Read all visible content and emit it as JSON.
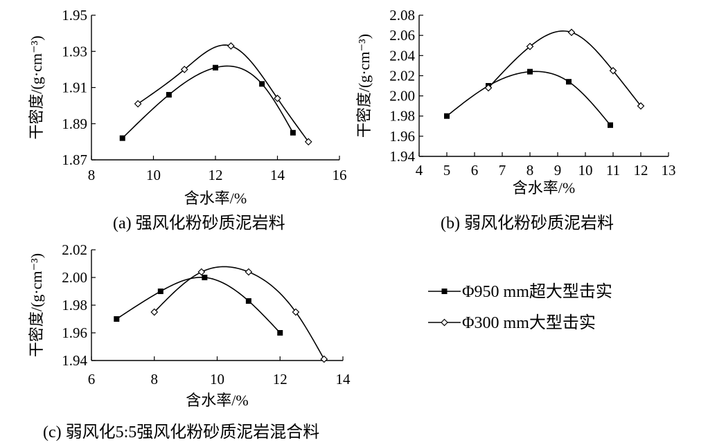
{
  "chart_data": [
    {
      "type": "line",
      "caption": "(a) 强风化粉砂质泥岩料",
      "xlabel": "含水率/%",
      "ylabel": "干密度/(g·cm⁻³)",
      "xlim": [
        8,
        16
      ],
      "ylim": [
        1.87,
        1.95
      ],
      "xticks": [
        8,
        10,
        12,
        14,
        16
      ],
      "yticks": [
        1.87,
        1.89,
        1.91,
        1.93,
        1.95
      ],
      "xtick_labels": [
        "8",
        "10",
        "12",
        "14",
        "16"
      ],
      "ytick_labels": [
        "1.87",
        "1.89",
        "1.91",
        "1.93",
        "1.95"
      ],
      "series": [
        {
          "name": "Φ950 mm超大型击实",
          "marker": "square",
          "x": [
            9.0,
            10.5,
            12.0,
            13.5,
            14.5
          ],
          "y": [
            1.882,
            1.906,
            1.921,
            1.912,
            1.885
          ]
        },
        {
          "name": "Φ300 mm大型击实",
          "marker": "diamond",
          "x": [
            9.5,
            11.0,
            12.5,
            14.0,
            15.0
          ],
          "y": [
            1.901,
            1.92,
            1.933,
            1.904,
            1.88
          ]
        }
      ]
    },
    {
      "type": "line",
      "caption": "(b) 弱风化粉砂质泥岩料",
      "xlabel": "含水率/%",
      "ylabel": "干密度/(g·cm⁻³)",
      "xlim": [
        4,
        13
      ],
      "ylim": [
        1.94,
        2.08
      ],
      "xticks": [
        4,
        5,
        6,
        7,
        8,
        9,
        10,
        11,
        12,
        13
      ],
      "yticks": [
        1.94,
        1.96,
        1.98,
        2.0,
        2.02,
        2.04,
        2.06,
        2.08
      ],
      "xtick_labels": [
        "4",
        "5",
        "6",
        "7",
        "8",
        "9",
        "10",
        "11",
        "12",
        "13"
      ],
      "ytick_labels": [
        "1.94",
        "1.96",
        "1.98",
        "2.00",
        "2.02",
        "2.04",
        "2.06",
        "2.08"
      ],
      "series": [
        {
          "name": "Φ950 mm超大型击实",
          "marker": "square",
          "x": [
            5.0,
            6.5,
            8.0,
            9.4,
            10.9
          ],
          "y": [
            1.98,
            2.01,
            2.024,
            2.014,
            1.971
          ]
        },
        {
          "name": "Φ300 mm大型击实",
          "marker": "diamond",
          "x": [
            6.5,
            8.0,
            9.5,
            11.0,
            12.0
          ],
          "y": [
            2.008,
            2.049,
            2.063,
            2.025,
            1.99
          ]
        }
      ]
    },
    {
      "type": "line",
      "caption": "(c) 弱风化5:5强风化粉砂质泥岩混合料",
      "xlabel": "含水率/%",
      "ylabel": "干密度/(g·cm⁻³)",
      "xlim": [
        6,
        14
      ],
      "ylim": [
        1.94,
        2.02
      ],
      "xticks": [
        6,
        8,
        10,
        12,
        14
      ],
      "yticks": [
        1.94,
        1.96,
        1.98,
        2.0,
        2.02
      ],
      "xtick_labels": [
        "6",
        "8",
        "10",
        "12",
        "14"
      ],
      "ytick_labels": [
        "1.94",
        "1.96",
        "1.98",
        "2.00",
        "2.02"
      ],
      "series": [
        {
          "name": "Φ950 mm超大型击实",
          "marker": "square",
          "x": [
            6.8,
            8.2,
            9.6,
            11.0,
            12.0
          ],
          "y": [
            1.97,
            1.99,
            2.0,
            1.983,
            1.96
          ]
        },
        {
          "name": "Φ300 mm大型击实",
          "marker": "diamond",
          "x": [
            8.0,
            9.5,
            11.0,
            12.5,
            13.4
          ],
          "y": [
            1.975,
            2.004,
            2.004,
            1.975,
            1.941
          ]
        }
      ]
    }
  ],
  "legend": {
    "items": [
      {
        "label": "Φ950 mm超大型击实",
        "marker": "square"
      },
      {
        "label": "Φ300 mm大型击实",
        "marker": "diamond"
      }
    ]
  }
}
